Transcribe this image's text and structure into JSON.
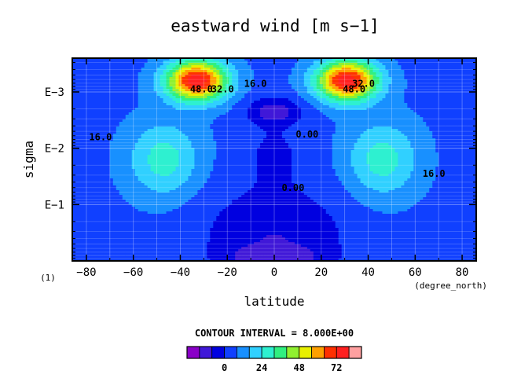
{
  "chart_data": {
    "type": "heatmap",
    "subtype": "filled-contour",
    "title": "eastward wind [m s−1]",
    "xlabel": "latitude",
    "ylabel": "sigma",
    "x_unit": "(degree_north)",
    "y_note": "(1)",
    "xlim": [
      -86,
      86
    ],
    "ylim_log10_sigma": [
      -3.6,
      0
    ],
    "x_ticks": [
      -80,
      -60,
      -40,
      -20,
      0,
      20,
      40,
      60,
      80
    ],
    "x_tick_labels": [
      "−80",
      "−60",
      "−40",
      "−20",
      "0",
      "20",
      "40",
      "60",
      "80"
    ],
    "y_ticks_log10": [
      -3,
      -2,
      -1
    ],
    "y_tick_labels": [
      "E−3",
      "E−2",
      "E−1"
    ],
    "grid": true,
    "contour_interval": 8,
    "contour_interval_label": "CONTOUR INTERVAL = 8.000E+00",
    "contour_labels": [
      {
        "text": "48.0",
        "lat": -31,
        "log_sigma": -3.05
      },
      {
        "text": "32.0",
        "lat": -22,
        "log_sigma": -3.05
      },
      {
        "text": "16.0",
        "lat": -8,
        "log_sigma": -3.15
      },
      {
        "text": "48.0",
        "lat": 34,
        "log_sigma": -3.05
      },
      {
        "text": "32.0",
        "lat": 38,
        "log_sigma": -3.15
      },
      {
        "text": "0.00",
        "lat": 14,
        "log_sigma": -2.25
      },
      {
        "text": "16.0",
        "lat": -74,
        "log_sigma": -2.2
      },
      {
        "text": "0.00",
        "lat": 8,
        "log_sigma": -1.3
      },
      {
        "text": "16.0",
        "lat": 68,
        "log_sigma": -1.55
      }
    ],
    "field_features": [
      {
        "kind": "jet_max",
        "lat": -33,
        "log_sigma": -3.15,
        "value": 72
      },
      {
        "kind": "jet_max",
        "lat": 31,
        "log_sigma": -3.15,
        "value": 72
      },
      {
        "kind": "local_max",
        "lat": -47,
        "log_sigma": -1.85,
        "value": 32
      },
      {
        "kind": "local_max",
        "lat": 46,
        "log_sigma": -1.85,
        "value": 32
      },
      {
        "kind": "min",
        "lat": 0,
        "log_sigma": -2.65,
        "value": -12
      },
      {
        "kind": "min",
        "lat": -13,
        "log_sigma": -0.15,
        "value": -14
      },
      {
        "kind": "min",
        "lat": 13,
        "log_sigma": -0.15,
        "value": -14
      }
    ],
    "colorbar": {
      "levels": [
        -16,
        -8,
        0,
        8,
        16,
        24,
        32,
        40,
        48,
        56,
        64,
        72,
        80
      ],
      "tick_labels": [
        "0",
        "24",
        "48",
        "72"
      ],
      "tick_values": [
        0,
        24,
        48,
        72
      ],
      "colors": [
        "#8a00c8",
        "#4018d8",
        "#0000e0",
        "#1040ff",
        "#1890ff",
        "#30d0ff",
        "#2ef0d0",
        "#30f080",
        "#90f030",
        "#e8f000",
        "#ffa000",
        "#ff3000",
        "#ff2020",
        "#ffa0a0"
      ]
    }
  }
}
